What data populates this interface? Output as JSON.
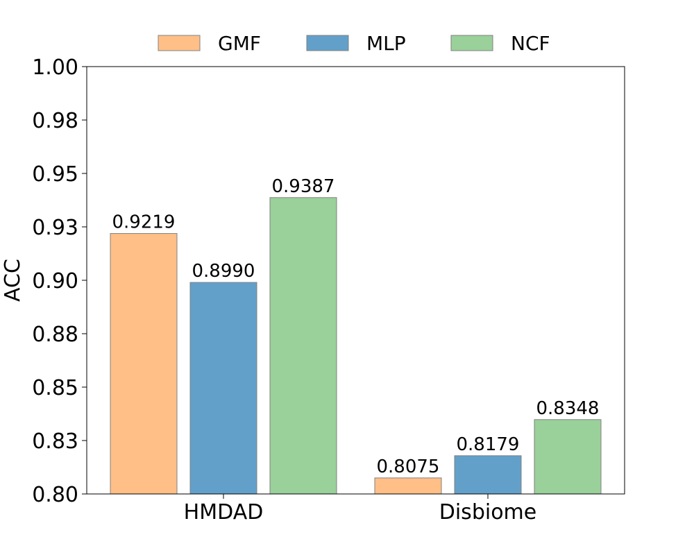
{
  "chart_data": {
    "type": "bar",
    "categories": [
      "HMDAD",
      "Disbiome"
    ],
    "series": [
      {
        "name": "GMF",
        "values": [
          0.9219,
          0.8075
        ],
        "labels": [
          "0.9219",
          "0.8075"
        ],
        "color": "#ffbf87"
      },
      {
        "name": "MLP",
        "values": [
          0.899,
          0.8179
        ],
        "labels": [
          "0.8990",
          "0.8179"
        ],
        "color": "#62a0ca"
      },
      {
        "name": "NCF",
        "values": [
          0.9387,
          0.8348
        ],
        "labels": [
          "0.9387",
          "0.8348"
        ],
        "color": "#9ad09a"
      }
    ],
    "ylabel": "ACC",
    "ylim": [
      0.8,
      1.0
    ],
    "yticks": [
      0.8,
      0.825,
      0.85,
      0.875,
      0.9,
      0.925,
      0.95,
      0.975,
      1.0
    ],
    "ytick_labels": [
      "0.80",
      "0.83",
      "0.85",
      "0.88",
      "0.90",
      "0.93",
      "0.95",
      "0.98",
      "1.00"
    ],
    "legend_position": "top-center",
    "grid": false,
    "bar_edge_color": "#808080"
  }
}
